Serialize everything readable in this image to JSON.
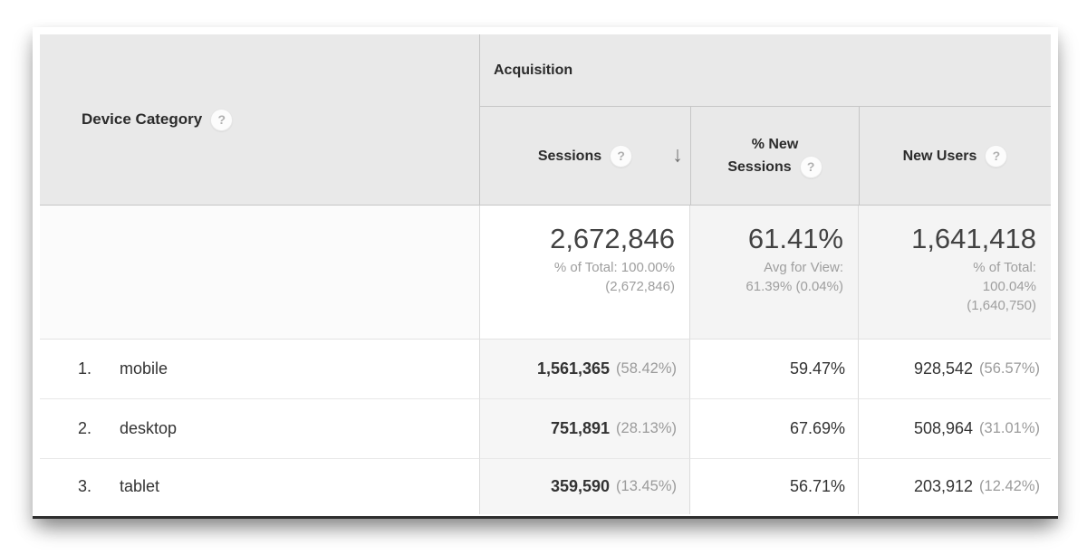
{
  "table": {
    "dimension_header": {
      "label": "Device Category"
    },
    "group_header": "Acquisition",
    "columns": {
      "sessions": {
        "label": "Sessions",
        "sorted": "descending"
      },
      "new_sessions": {
        "label_line1": "% New",
        "label_line2": "Sessions",
        "label": "% New Sessions"
      },
      "new_users": {
        "label": "New Users"
      }
    },
    "summary": {
      "sessions": {
        "value": "2,672,846",
        "line1": "% of Total: 100.00%",
        "line2": "(2,672,846)"
      },
      "new_sessions": {
        "value": "61.41%",
        "line1": "Avg for View:",
        "line2": "61.39% (0.04%)"
      },
      "new_users": {
        "value": "1,641,418",
        "line1": "% of Total:",
        "line2": "100.04%",
        "line3": "(1,640,750)"
      }
    },
    "rows": [
      {
        "index": "1.",
        "device": "mobile",
        "sessions": "1,561,365",
        "sessions_pct": "(58.42%)",
        "new_sessions": "59.47%",
        "new_users": "928,542",
        "new_users_pct": "(56.57%)"
      },
      {
        "index": "2.",
        "device": "desktop",
        "sessions": "751,891",
        "sessions_pct": "(28.13%)",
        "new_sessions": "67.69%",
        "new_users": "508,964",
        "new_users_pct": "(31.01%)"
      },
      {
        "index": "3.",
        "device": "tablet",
        "sessions": "359,590",
        "sessions_pct": "(13.45%)",
        "new_sessions": "56.71%",
        "new_users": "203,912",
        "new_users_pct": "(12.42%)"
      }
    ]
  },
  "icons": {
    "help": "?",
    "sort_desc": "↓"
  },
  "colors": {
    "header_bg": "#e9e9e9",
    "sorted_column_bg": "#f6f6f6",
    "summary_metric_bg": "#f4f4f4",
    "secondary_text": "#9b9b9b"
  }
}
